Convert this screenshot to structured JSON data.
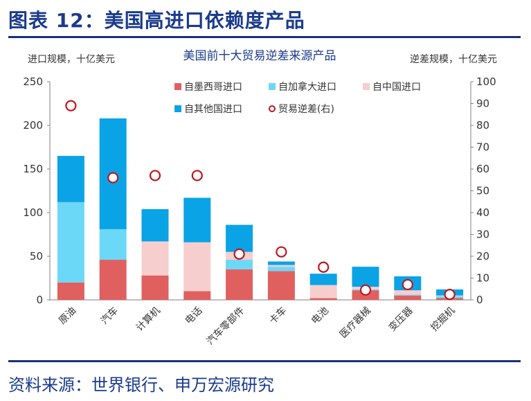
{
  "page": {
    "title": "图表 12：美国高进口依赖度产品",
    "source": "资料来源：世界银行、申万宏源研究"
  },
  "chart_data": {
    "type": "bar",
    "subtype": "stacked bar with secondary-axis scatter",
    "title": "美国前十大贸易逆差来源产品",
    "ylabel": "进口规模，十亿美元",
    "y2label": "逆差规模，十亿美元",
    "ylim": [
      0,
      250
    ],
    "y2lim": [
      0,
      100
    ],
    "yticks": [
      "0",
      "50",
      "100",
      "150",
      "200",
      "250"
    ],
    "y2ticks": [
      "0",
      "10",
      "20",
      "30",
      "40",
      "50",
      "60",
      "70",
      "80",
      "90",
      "100"
    ],
    "categories": [
      "原油",
      "汽车",
      "计算机",
      "电话",
      "汽车零部件",
      "卡车",
      "电池",
      "医疗器械",
      "变压器",
      "挖掘机"
    ],
    "series": [
      {
        "name": "自墨西哥进口",
        "color": "#e06060",
        "values": [
          20,
          46,
          28,
          10,
          35,
          33,
          2,
          11,
          5,
          2
        ]
      },
      {
        "name": "自加拿大进口",
        "color": "#6cd8f8",
        "values": [
          92,
          35,
          0,
          0,
          11,
          5,
          0,
          1,
          1,
          2
        ]
      },
      {
        "name": "自中国进口",
        "color": "#f6cece",
        "values": [
          0,
          0,
          39,
          56,
          9,
          2,
          15,
          3,
          5,
          1
        ]
      },
      {
        "name": "自其他国进口",
        "color": "#0aa3e6",
        "values": [
          53,
          127,
          37,
          51,
          31,
          4,
          13,
          23,
          16,
          7
        ]
      }
    ],
    "scatter": {
      "name": "贸易逆差(右)",
      "color": "#c0141c",
      "values": [
        89,
        56,
        57,
        57,
        21,
        22,
        15,
        4.5,
        7,
        2.5
      ]
    },
    "legend_position": "top-right",
    "grid": false
  }
}
